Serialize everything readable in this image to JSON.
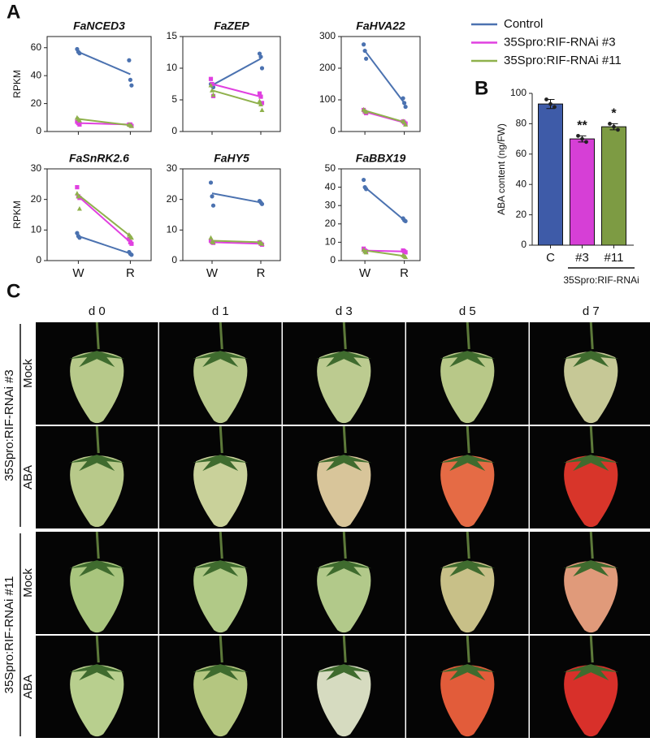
{
  "panel_labels": [
    "A",
    "B",
    "C"
  ],
  "chart_data": [
    {
      "type": "line",
      "legend": [
        {
          "name": "Control",
          "color": "#4b72b0"
        },
        {
          "name": "35Spro:RIF-RNAi #3",
          "color": "#e040e0"
        },
        {
          "name": "35Spro:RIF-RNAi #11",
          "color": "#8fb14c"
        }
      ],
      "subplots": [
        {
          "title": "FaNCED3",
          "ylabel": "RPKM",
          "categories": [
            null,
            null
          ],
          "ylim": [
            0,
            68
          ],
          "yticks": [
            0,
            20,
            40,
            60
          ],
          "series": [
            {
              "values": [
                57,
                41
              ],
              "replicates": [
                [
                  59,
                  57,
                  56
                ],
                [
                  51,
                  37,
                  33
                ]
              ]
            },
            {
              "values": [
                6,
                5
              ],
              "replicates": [
                [
                  7,
                  6,
                  5
                ],
                [
                  5,
                  5,
                  4
                ]
              ]
            },
            {
              "values": [
                9,
                4.5
              ],
              "replicates": [
                [
                  10,
                  9,
                  8
                ],
                [
                  5,
                  4.5,
                  4
                ]
              ]
            }
          ]
        },
        {
          "title": "FaZEP",
          "categories": [
            null,
            null
          ],
          "ylim": [
            0,
            15
          ],
          "yticks": [
            0,
            5,
            10,
            15
          ],
          "series": [
            {
              "values": [
                7.3,
                11.5
              ],
              "replicates": [
                [
                  7.5,
                  7.2,
                  7.0
                ],
                [
                  12.3,
                  11.8,
                  10
                ]
              ]
            },
            {
              "values": [
                7.5,
                5.5
              ],
              "replicates": [
                [
                  8.3,
                  7.5,
                  5.6
                ],
                [
                  6,
                  5.5,
                  4.5
                ]
              ]
            },
            {
              "values": [
                6.5,
                4.3
              ],
              "replicates": [
                [
                  7.3,
                  6.5,
                  5.8
                ],
                [
                  4.8,
                  4.3,
                  3.4
                ]
              ]
            }
          ]
        },
        {
          "title": "FaHVA22",
          "categories": [
            null,
            null
          ],
          "ylim": [
            0,
            300
          ],
          "yticks": [
            0,
            100,
            200,
            300
          ],
          "series": [
            {
              "values": [
                255,
                90
              ],
              "replicates": [
                [
                  275,
                  255,
                  230
                ],
                [
                  105,
                  90,
                  78
                ]
              ]
            },
            {
              "values": [
                62,
                28
              ],
              "replicates": [
                [
                  68,
                  62,
                  58
                ],
                [
                  32,
                  28,
                  25
                ]
              ]
            },
            {
              "values": [
                66,
                30
              ],
              "replicates": [
                [
                  70,
                  66,
                  62
                ],
                [
                  33,
                  30,
                  22
                ]
              ]
            }
          ]
        },
        {
          "title": "FaSnRK2.6",
          "ylabel": "RPKM",
          "categories": [
            "W",
            "R"
          ],
          "ylim": [
            0,
            30
          ],
          "yticks": [
            0,
            10,
            20,
            30
          ],
          "series": [
            {
              "values": [
                8,
                2.3
              ],
              "replicates": [
                [
                  9,
                  8,
                  7.5
                ],
                [
                  2.8,
                  2.2,
                  1.9
                ]
              ]
            },
            {
              "values": [
                21,
                6
              ],
              "replicates": [
                [
                  24,
                  21,
                  20.5
                ],
                [
                  7,
                  6,
                  5.5
                ]
              ]
            },
            {
              "values": [
                21.5,
                8
              ],
              "replicates": [
                [
                  22,
                  21,
                  17
                ],
                [
                  8.5,
                  8,
                  7.5
                ]
              ]
            }
          ]
        },
        {
          "title": "FaHY5",
          "categories": [
            "W",
            "R"
          ],
          "ylim": [
            0,
            30
          ],
          "yticks": [
            0,
            10,
            20,
            30
          ],
          "series": [
            {
              "values": [
                22,
                19
              ],
              "replicates": [
                [
                  25.5,
                  21,
                  18
                ],
                [
                  19.5,
                  19,
                  18.5
                ]
              ]
            },
            {
              "values": [
                6,
                5.5
              ],
              "replicates": [
                [
                  6.5,
                  6,
                  5.8
                ],
                [
                  6,
                  5.5,
                  5.2
                ]
              ]
            },
            {
              "values": [
                6.5,
                6
              ],
              "replicates": [
                [
                  7.5,
                  6.3,
                  6
                ],
                [
                  6,
                  5.8,
                  5.5
                ]
              ]
            }
          ]
        },
        {
          "title": "FaBBX19",
          "categories": [
            "W",
            "R"
          ],
          "ylim": [
            0,
            50
          ],
          "yticks": [
            0,
            10,
            20,
            30,
            40,
            50
          ],
          "series": [
            {
              "values": [
                40,
                22
              ],
              "replicates": [
                [
                  44,
                  40,
                  39
                ],
                [
                  23,
                  22,
                  21.5
                ]
              ]
            },
            {
              "values": [
                5.5,
                5
              ],
              "replicates": [
                [
                  6.5,
                  5.5,
                  5
                ],
                [
                  5.5,
                  5,
                  4.5
                ]
              ]
            },
            {
              "values": [
                5.5,
                2.5
              ],
              "replicates": [
                [
                  6,
                  5,
                  4.5
                ],
                [
                  3,
                  2.5,
                  2
                ]
              ]
            }
          ]
        }
      ]
    },
    {
      "type": "bar",
      "ylabel": "ABA content (ng/FW)",
      "categories": [
        "C",
        "#3",
        "#11"
      ],
      "values": [
        93,
        70,
        78
      ],
      "errors": [
        3,
        2,
        2
      ],
      "replicates": [
        [
          96,
          93,
          91
        ],
        [
          72,
          70,
          68
        ],
        [
          80,
          78,
          76
        ]
      ],
      "colors": [
        "#3e5ba8",
        "#d63fd6",
        "#7d9b43"
      ],
      "annotations": [
        null,
        "**",
        "*"
      ],
      "group_label": "35Spro:RIF-RNAi",
      "ylim": [
        0,
        100
      ],
      "yticks": [
        0,
        20,
        40,
        60,
        80,
        100
      ]
    }
  ],
  "photo_grid": {
    "columns": [
      "d 0",
      "d 1",
      "d 3",
      "d 5",
      "d 7"
    ],
    "groups": [
      {
        "label": "35Spro:RIF-RNAi #3",
        "rows": [
          "Mock",
          "ABA"
        ]
      },
      {
        "label": "35Spro:RIF-RNAi #11",
        "rows": [
          "Mock",
          "ABA"
        ]
      }
    ]
  }
}
